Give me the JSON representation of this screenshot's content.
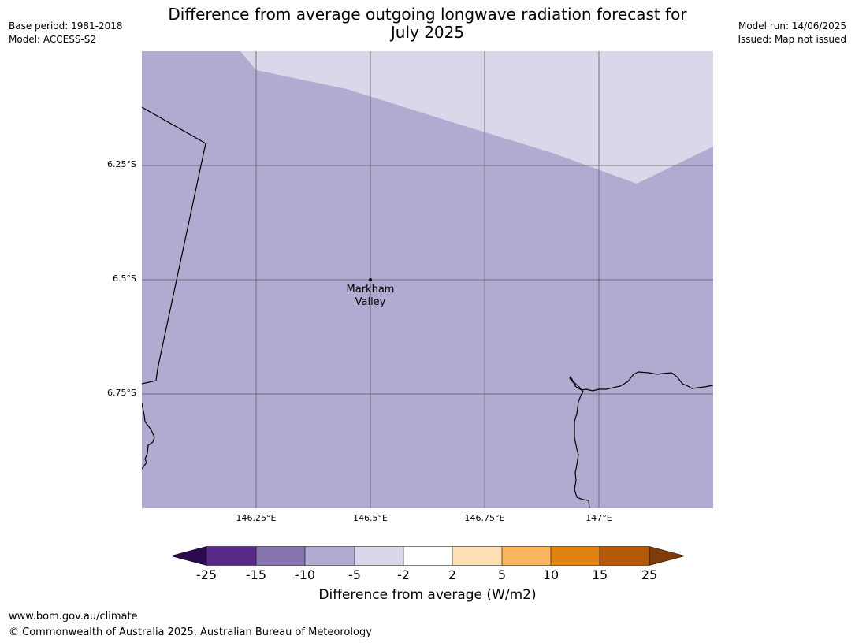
{
  "header": {
    "title_line1": "Difference from average outgoing longwave radiation forecast for",
    "title_line2": "July 2025",
    "base_period": "Base period: 1981-2018",
    "model": "Model: ACCESS-S2",
    "model_run": "Model run: 14/06/2025",
    "issued": "Issued: Map not issued"
  },
  "map": {
    "latitude_labels": [
      "6.25°S",
      "6.5°S",
      "6.75°S"
    ],
    "longitude_labels": [
      "146.25°E",
      "146.5°E",
      "146.75°E",
      "147°E"
    ],
    "place_label_line1": "Markham",
    "place_label_line2": "Valley",
    "colors": {
      "minus10_to_minus5": "#b1abd2",
      "minus5_to_minus2": "#d8d8ea",
      "gridline": "#555555",
      "coastline": "#000000"
    }
  },
  "legend": {
    "ticks": [
      "-25",
      "-15",
      "-10",
      "-5",
      "-2",
      "2",
      "5",
      "10",
      "15",
      "25"
    ],
    "colors": {
      "below_min": "#2d0a4e",
      "minus25_to_minus15": "#5a2a8a",
      "minus15_to_minus10": "#8473ad",
      "minus10_to_minus5": "#b1abd2",
      "minus5_to_minus2": "#d8d8ea",
      "minus2_to_2": "#ffffff",
      "2_to_5": "#fddfb3",
      "5_to_10": "#fbb560",
      "10_to_15": "#e08214",
      "15_to_25": "#b35806",
      "above_max": "#7f3b08"
    },
    "label": "Difference from average (W/m2)"
  },
  "footer": {
    "url": "www.bom.gov.au/climate",
    "copyright": "© Commonwealth of Australia 2025, Australian Bureau of Meteorology"
  }
}
